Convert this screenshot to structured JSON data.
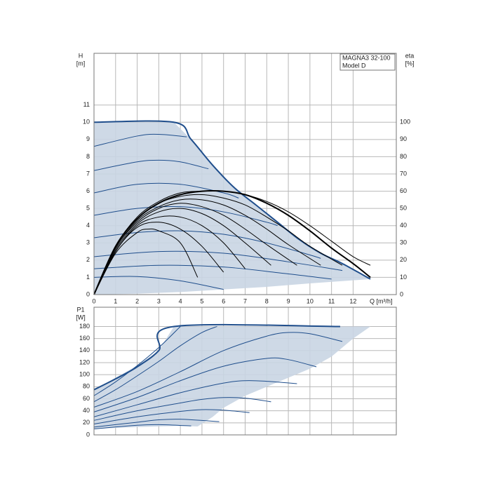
{
  "chart_data": [
    {
      "type": "line",
      "ylabel": "H",
      "yunit": "[m]",
      "y2label": "eta",
      "y2unit": "[%]",
      "xlabel": "Q [m³/h]",
      "title": "MAGNA3 32-100",
      "subtitle": "Model D",
      "xlim": [
        0,
        14
      ],
      "ylim": [
        0,
        14
      ],
      "y2lim": [
        0,
        140
      ],
      "xticks": [
        0,
        1,
        2,
        3,
        4,
        5,
        6,
        7,
        8,
        9,
        10,
        11,
        12
      ],
      "yticks": [
        0,
        1,
        2,
        3,
        4,
        5,
        6,
        7,
        8,
        9,
        10,
        11
      ],
      "y2ticks": [
        0,
        10,
        20,
        30,
        40,
        50,
        60,
        70,
        80,
        90,
        100
      ],
      "grid": true,
      "series": [
        {
          "style": "area",
          "color": "#c9d5e3",
          "x": [
            0,
            3.7,
            4.5,
            5.5,
            6.5,
            7.5,
            8.5,
            9.5,
            10.5,
            11.5,
            12.8,
            10,
            8,
            6,
            4,
            2,
            0
          ],
          "values": [
            10,
            10,
            9,
            7.5,
            6.2,
            5.2,
            4.2,
            3.2,
            2.4,
            1.8,
            0.9,
            0.65,
            0.45,
            0.3,
            0.15,
            0.05,
            0
          ]
        },
        {
          "style": "line",
          "color": "#1f4e8c",
          "width": 2,
          "x": [
            0,
            3.7,
            4.5,
            5.5,
            6.5,
            7.5,
            8.5,
            9.5,
            10.5,
            11.5,
            12.8
          ],
          "values": [
            10,
            10,
            9,
            7.5,
            6.2,
            5.2,
            4.2,
            3.2,
            2.4,
            1.8,
            0.9
          ]
        },
        {
          "style": "line",
          "color": "#1f4e8c",
          "width": 1,
          "x": [
            0,
            2,
            3,
            4.3
          ],
          "values": [
            8.6,
            9.2,
            9.3,
            9.15
          ]
        },
        {
          "style": "line",
          "color": "#1f4e8c",
          "width": 1,
          "x": [
            0,
            2,
            3,
            4,
            5.3
          ],
          "values": [
            7.2,
            7.7,
            7.8,
            7.7,
            7.3
          ]
        },
        {
          "style": "line",
          "color": "#1f4e8c",
          "width": 1,
          "x": [
            0,
            2,
            4,
            6,
            6.7
          ],
          "values": [
            5.9,
            6.4,
            6.4,
            5.9,
            5.6
          ]
        },
        {
          "style": "line",
          "color": "#1f4e8c",
          "width": 1,
          "x": [
            0,
            2,
            4,
            6,
            8,
            8.5
          ],
          "values": [
            4.6,
            5,
            5.1,
            4.8,
            4.2,
            4
          ]
        },
        {
          "style": "line",
          "color": "#1f4e8c",
          "width": 1,
          "x": [
            0,
            2,
            4,
            6,
            8,
            10,
            10.5
          ],
          "values": [
            3.3,
            3.6,
            3.7,
            3.5,
            3,
            2.3,
            2.1
          ]
        },
        {
          "style": "line",
          "color": "#1f4e8c",
          "width": 1,
          "x": [
            0,
            3,
            6,
            9,
            11.5
          ],
          "values": [
            2.2,
            2.5,
            2.4,
            1.9,
            1.4
          ]
        },
        {
          "style": "line",
          "color": "#1f4e8c",
          "width": 1,
          "x": [
            0,
            3,
            6,
            9,
            11
          ],
          "values": [
            1.5,
            1.7,
            1.6,
            1.2,
            0.9
          ]
        },
        {
          "style": "line",
          "color": "#1f4e8c",
          "width": 1,
          "x": [
            0,
            2,
            4,
            6
          ],
          "values": [
            1,
            1.05,
            0.8,
            0.3
          ]
        },
        {
          "style": "line",
          "color": "#000000",
          "width": 2,
          "axis": "y2",
          "x": [
            0,
            1,
            2,
            3,
            4,
            5,
            6,
            7,
            8,
            9,
            10,
            11,
            12,
            12.8
          ],
          "values": [
            0,
            28,
            44,
            53,
            58,
            60,
            60,
            58,
            53,
            46,
            37,
            27,
            18,
            10
          ]
        },
        {
          "style": "line",
          "color": "#000000",
          "width": 1,
          "axis": "y2",
          "x": [
            0,
            1,
            2,
            3,
            4,
            5,
            6,
            7,
            8,
            9,
            10,
            11,
            12,
            12.8
          ],
          "values": [
            0,
            28,
            45,
            54,
            59,
            60,
            60,
            58,
            54,
            48,
            40,
            31,
            22,
            17
          ]
        },
        {
          "style": "line",
          "color": "#000000",
          "width": 1,
          "axis": "y2",
          "x": [
            0,
            1,
            2,
            3,
            4,
            5,
            6,
            7,
            8,
            9,
            10,
            11.5
          ],
          "values": [
            0,
            28,
            44,
            53,
            57,
            58,
            56,
            52,
            45,
            37,
            28,
            17
          ]
        },
        {
          "style": "line",
          "color": "#000000",
          "width": 1,
          "axis": "y2",
          "x": [
            0,
            1,
            2,
            3,
            4,
            5,
            6,
            7,
            8,
            9,
            10.5
          ],
          "values": [
            0,
            27,
            43,
            51,
            55,
            55,
            52,
            46,
            38,
            29,
            17
          ]
        },
        {
          "style": "line",
          "color": "#000000",
          "width": 1,
          "axis": "y2",
          "x": [
            0,
            1,
            2,
            3,
            4,
            5,
            6,
            7,
            8,
            9.4
          ],
          "values": [
            0,
            27,
            42,
            50,
            53,
            51,
            46,
            38,
            29,
            17
          ]
        },
        {
          "style": "line",
          "color": "#000000",
          "width": 1,
          "axis": "y2",
          "x": [
            0,
            1,
            2,
            3,
            4,
            5,
            6,
            7,
            8.2
          ],
          "values": [
            0,
            26,
            41,
            48,
            50,
            47,
            40,
            30,
            17
          ]
        },
        {
          "style": "line",
          "color": "#000000",
          "width": 1,
          "axis": "y2",
          "x": [
            0,
            1,
            2,
            3,
            4,
            5,
            6,
            7
          ],
          "values": [
            0,
            25,
            40,
            45,
            45,
            40,
            30,
            15
          ]
        },
        {
          "style": "line",
          "color": "#000000",
          "width": 1,
          "axis": "y2",
          "x": [
            0,
            1,
            2,
            3,
            4,
            5,
            6
          ],
          "values": [
            0,
            25,
            39,
            42,
            38,
            28,
            13
          ]
        },
        {
          "style": "line",
          "color": "#000000",
          "width": 1,
          "axis": "y2",
          "x": [
            0,
            1,
            2,
            2.5,
            3,
            4,
            4.8
          ],
          "values": [
            0,
            24,
            36,
            38,
            37,
            30,
            10
          ]
        }
      ]
    },
    {
      "type": "line",
      "ylabel": "P1",
      "yunit": "[W]",
      "xlim": [
        0,
        14
      ],
      "ylim": [
        0,
        212
      ],
      "xticks": [
        0,
        1,
        2,
        3,
        4,
        5,
        6,
        7,
        8,
        9,
        10,
        11,
        12
      ],
      "show_xtick_labels": false,
      "yticks": [
        0,
        20,
        40,
        60,
        80,
        100,
        120,
        140,
        160,
        180
      ],
      "grid": true,
      "series": [
        {
          "style": "area",
          "color": "#c9d5e3",
          "x": [
            0,
            1,
            2,
            3,
            3.7,
            12.8,
            12,
            11,
            10,
            9,
            8,
            7,
            6,
            5.5,
            4.8,
            4,
            2,
            0
          ],
          "values": [
            75,
            95,
            115,
            140,
            180,
            180,
            160,
            130,
            110,
            95,
            80,
            65,
            45,
            30,
            14,
            15,
            13,
            10
          ]
        },
        {
          "style": "line",
          "color": "#1f4e8c",
          "width": 2,
          "x": [
            0,
            1,
            2,
            3,
            3.7,
            11.4
          ],
          "values": [
            75,
            93,
            113,
            140,
            180,
            180
          ]
        },
        {
          "style": "line",
          "color": "#1f4e8c",
          "width": 1,
          "x": [
            0,
            1,
            2,
            3,
            4
          ],
          "values": [
            65,
            88,
            115,
            145,
            180
          ]
        },
        {
          "style": "line",
          "color": "#1f4e8c",
          "width": 1,
          "x": [
            0,
            1,
            2,
            3,
            4,
            5,
            5.7
          ],
          "values": [
            55,
            75,
            98,
            122,
            148,
            170,
            180
          ]
        },
        {
          "style": "line",
          "color": "#1f4e8c",
          "width": 1,
          "x": [
            0,
            2,
            4,
            6,
            8,
            9,
            10,
            11.5
          ],
          "values": [
            46,
            72,
            105,
            140,
            164,
            170,
            168,
            155
          ]
        },
        {
          "style": "line",
          "color": "#1f4e8c",
          "width": 1,
          "x": [
            0,
            2,
            4,
            6,
            8,
            9,
            10.3
          ],
          "values": [
            38,
            62,
            90,
            114,
            127,
            125,
            113
          ]
        },
        {
          "style": "line",
          "color": "#1f4e8c",
          "width": 1,
          "x": [
            0,
            2,
            4,
            6,
            7,
            8,
            9.4
          ],
          "values": [
            30,
            50,
            70,
            86,
            90,
            89,
            85
          ]
        },
        {
          "style": "line",
          "color": "#1f4e8c",
          "width": 1,
          "x": [
            0,
            2,
            4,
            5,
            6,
            7,
            8.2
          ],
          "values": [
            24,
            40,
            53,
            59,
            62,
            61,
            55
          ]
        },
        {
          "style": "line",
          "color": "#1f4e8c",
          "width": 1,
          "x": [
            0,
            2,
            4,
            5,
            6,
            7.2
          ],
          "values": [
            18,
            30,
            39,
            42,
            41,
            37
          ]
        },
        {
          "style": "line",
          "color": "#1f4e8c",
          "width": 1,
          "x": [
            0,
            2,
            3,
            4,
            5.8
          ],
          "values": [
            13,
            21,
            25,
            26,
            22
          ]
        },
        {
          "style": "line",
          "color": "#1f4e8c",
          "width": 1,
          "x": [
            0,
            2,
            3,
            4.5
          ],
          "values": [
            10,
            16,
            17,
            15
          ]
        }
      ]
    }
  ]
}
